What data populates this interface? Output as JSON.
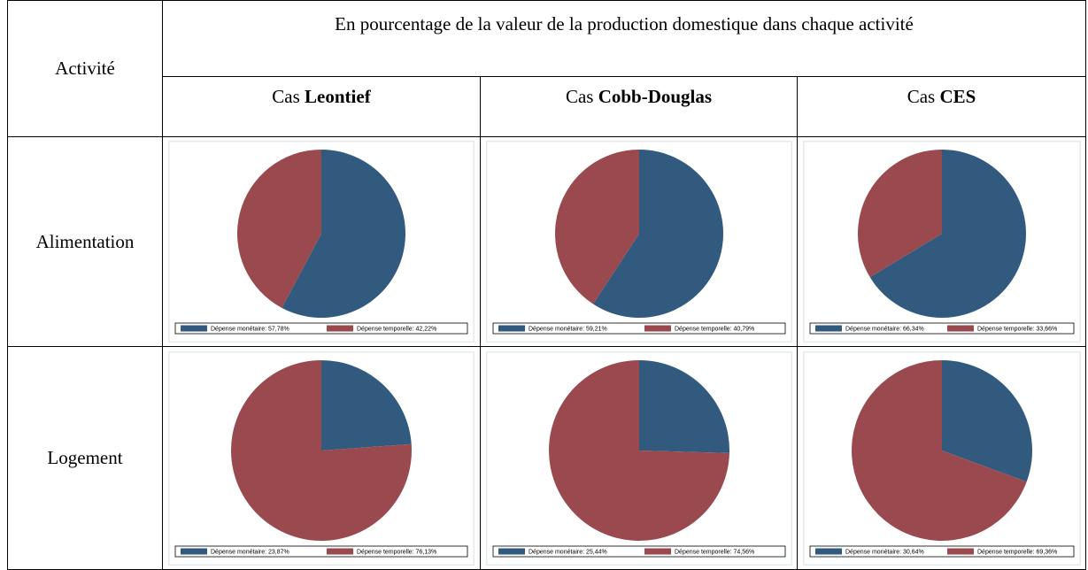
{
  "table": {
    "header": {
      "activity": "Activité",
      "span": "En pourcentage de la valeur de la production domestique dans chaque activité",
      "cases": [
        {
          "prefix": "Cas",
          "name": "Leontief"
        },
        {
          "prefix": "Cas",
          "name": "Cobb-Douglas"
        },
        {
          "prefix": "Cas",
          "name": "CES"
        }
      ]
    },
    "rows": [
      {
        "label": "Alimentation",
        "charts": [
          {
            "type": "pie",
            "categories": [
              "Dépense monétaire: 57,78%",
              "Dépense temporelle: 42,22%"
            ],
            "values": [
              57.78,
              42.22
            ],
            "colors": [
              "#325a7f",
              "#9a4a4f"
            ]
          },
          {
            "type": "pie",
            "categories": [
              "Dépense monétaire: 59,21%",
              "Dépense temporelle: 40,79%"
            ],
            "values": [
              59.21,
              40.79
            ],
            "colors": [
              "#325a7f",
              "#9a4a4f"
            ]
          },
          {
            "type": "pie",
            "categories": [
              "Dépense monétaire: 66,34%",
              "Dépense temporelle: 33,66%"
            ],
            "values": [
              66.34,
              33.66
            ],
            "colors": [
              "#325a7f",
              "#9a4a4f"
            ]
          }
        ]
      },
      {
        "label": "Logement",
        "charts": [
          {
            "type": "pie",
            "categories": [
              "Dépense monétaire: 23,87%",
              "Dépense temporelle: 76,13%"
            ],
            "values": [
              23.87,
              76.13
            ],
            "colors": [
              "#325a7f",
              "#9a4a4f"
            ]
          },
          {
            "type": "pie",
            "categories": [
              "Dépense monétaire: 25,44%",
              "Dépense temporelle: 74,56%"
            ],
            "values": [
              25.44,
              74.56
            ],
            "colors": [
              "#325a7f",
              "#9a4a4f"
            ]
          },
          {
            "type": "pie",
            "categories": [
              "Dépense monétaire: 30,64%",
              "Dépense temporelle: 69,36%"
            ],
            "values": [
              30.64,
              69.36
            ],
            "colors": [
              "#325a7f",
              "#9a4a4f"
            ]
          }
        ]
      }
    ]
  }
}
